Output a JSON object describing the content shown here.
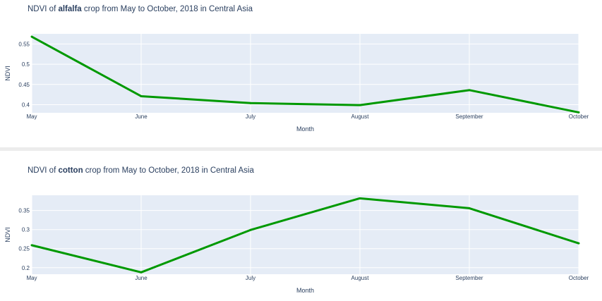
{
  "charts": [
    {
      "title_prefix": "NDVI of ",
      "title_bold": "alfalfa",
      "title_suffix": " crop from May to October, 2018 in Central Asia"
    },
    {
      "title_prefix": "NDVI of ",
      "title_bold": "cotton",
      "title_suffix": " crop from May to October, 2018 in Central Asia"
    }
  ],
  "colors": {
    "plot_bg": "#e5ecf6",
    "grid": "#ffffff",
    "line": "#009900",
    "text": "#2a3f5f"
  },
  "chart_data": [
    {
      "type": "line",
      "title": "NDVI of alfalfa crop from May to October, 2018 in Central Asia",
      "xlabel": "Month",
      "ylabel": "NDVI",
      "categories": [
        "May",
        "June",
        "July",
        "August",
        "September",
        "October"
      ],
      "series": [
        {
          "values": [
            0.568,
            0.421,
            0.404,
            0.399,
            0.436,
            0.381
          ]
        }
      ],
      "ylim": [
        0.38,
        0.575
      ],
      "yticks": [
        0.4,
        0.45,
        0.5,
        0.55
      ],
      "ytick_labels": [
        "0.4",
        "0.45",
        "0.5",
        "0.55"
      ],
      "grid": true,
      "legend": "none"
    },
    {
      "type": "line",
      "title": "NDVI of cotton crop from May to October, 2018 in Central Asia",
      "xlabel": "Month",
      "ylabel": "NDVI",
      "categories": [
        "May",
        "June",
        "July",
        "August",
        "September",
        "October"
      ],
      "series": [
        {
          "values": [
            0.259,
            0.188,
            0.299,
            0.382,
            0.356,
            0.264
          ]
        }
      ],
      "ylim": [
        0.183,
        0.39
      ],
      "yticks": [
        0.2,
        0.25,
        0.3,
        0.35
      ],
      "ytick_labels": [
        "0.2",
        "0.25",
        "0.3",
        "0.35"
      ],
      "grid": true,
      "legend": "none"
    }
  ]
}
